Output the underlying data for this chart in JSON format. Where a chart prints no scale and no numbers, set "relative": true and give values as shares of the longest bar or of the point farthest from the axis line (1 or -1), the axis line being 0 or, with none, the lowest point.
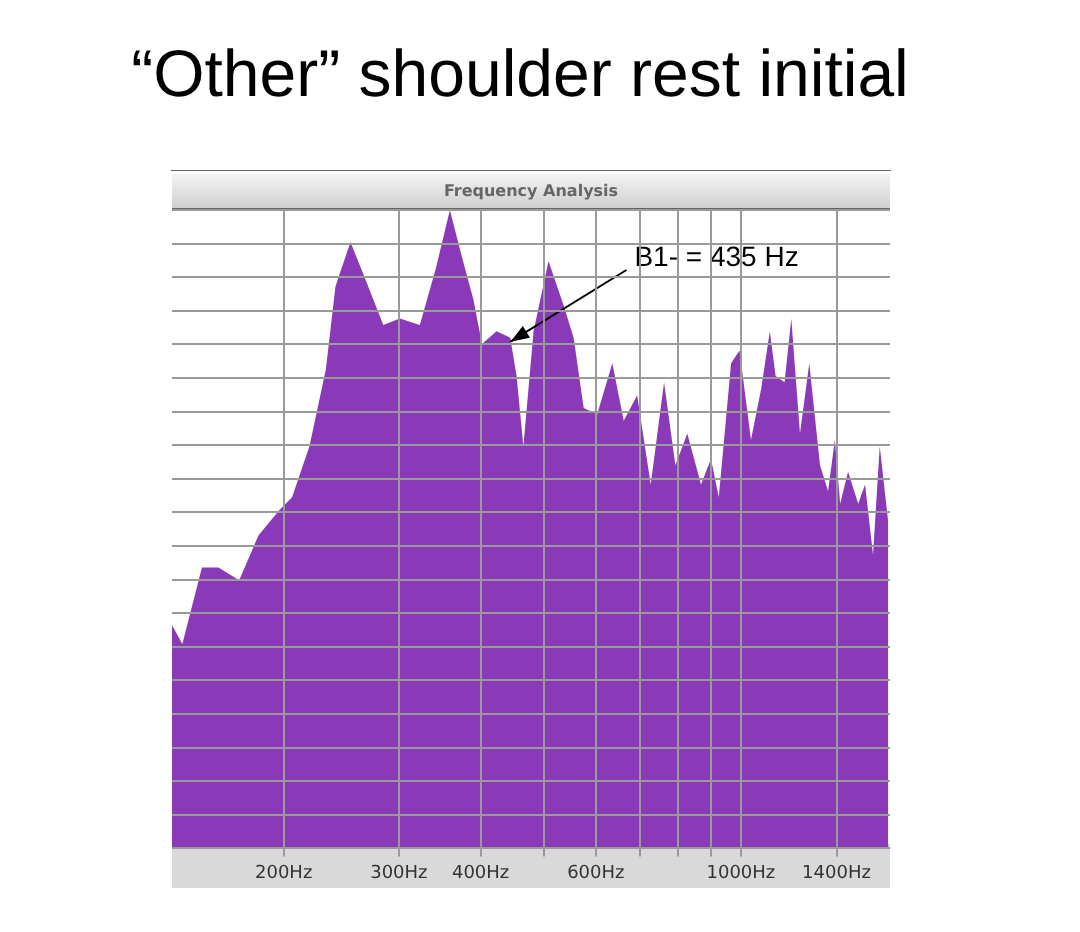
{
  "chart_data": {
    "type": "area",
    "title": "“Other” shoulder rest initial",
    "subtitle": "Frequency Analysis",
    "relative": true,
    "color": "#8a3ab9",
    "grid": true,
    "legend": false,
    "log": "x",
    "xlim": [
      135,
      1690
    ],
    "xticks": [
      {
        "value": 200,
        "label": "200Hz"
      },
      {
        "value": 300,
        "label": "300Hz"
      },
      {
        "value": 400,
        "label": "400Hz"
      },
      {
        "value": 500,
        "label": null
      },
      {
        "value": 600,
        "label": "600Hz"
      },
      {
        "value": 700,
        "label": null
      },
      {
        "value": 800,
        "label": null
      },
      {
        "value": 900,
        "label": null
      },
      {
        "value": 1000,
        "label": "1000Hz"
      },
      {
        "value": 1400,
        "label": "1400Hz"
      }
    ],
    "x": [
      135,
      140,
      150,
      159,
      171,
      183,
      197,
      206,
      219,
      232,
      240,
      253,
      267,
      284,
      301,
      323,
      342,
      359,
      376,
      390,
      402,
      423,
      444,
      454,
      465,
      482,
      508,
      536,
      555,
      575,
      603,
      636,
      662,
      694,
      728,
      763,
      794,
      828,
      869,
      900,
      925,
      966,
      995,
      1036,
      1074,
      1107,
      1130,
      1166,
      1194,
      1231,
      1272,
      1321,
      1359,
      1392,
      1418,
      1458,
      1511,
      1548,
      1592,
      1630,
      1680
    ],
    "values": [
      0.35,
      0.32,
      0.44,
      0.44,
      0.42,
      0.49,
      0.53,
      0.55,
      0.63,
      0.75,
      0.88,
      0.95,
      0.89,
      0.82,
      0.83,
      0.82,
      0.91,
      1,
      0.92,
      0.86,
      0.79,
      0.81,
      0.8,
      0.74,
      0.63,
      0.81,
      0.92,
      0.85,
      0.8,
      0.69,
      0.68,
      0.76,
      0.67,
      0.71,
      0.57,
      0.73,
      0.6,
      0.65,
      0.57,
      0.61,
      0.55,
      0.76,
      0.78,
      0.64,
      0.72,
      0.81,
      0.74,
      0.73,
      0.83,
      0.65,
      0.76,
      0.6,
      0.56,
      0.64,
      0.54,
      0.59,
      0.54,
      0.57,
      0.46,
      0.63,
      0.51
    ],
    "annotations": [
      {
        "text": "B1- = 435 Hz",
        "x": 435,
        "y": 0.8
      }
    ]
  }
}
